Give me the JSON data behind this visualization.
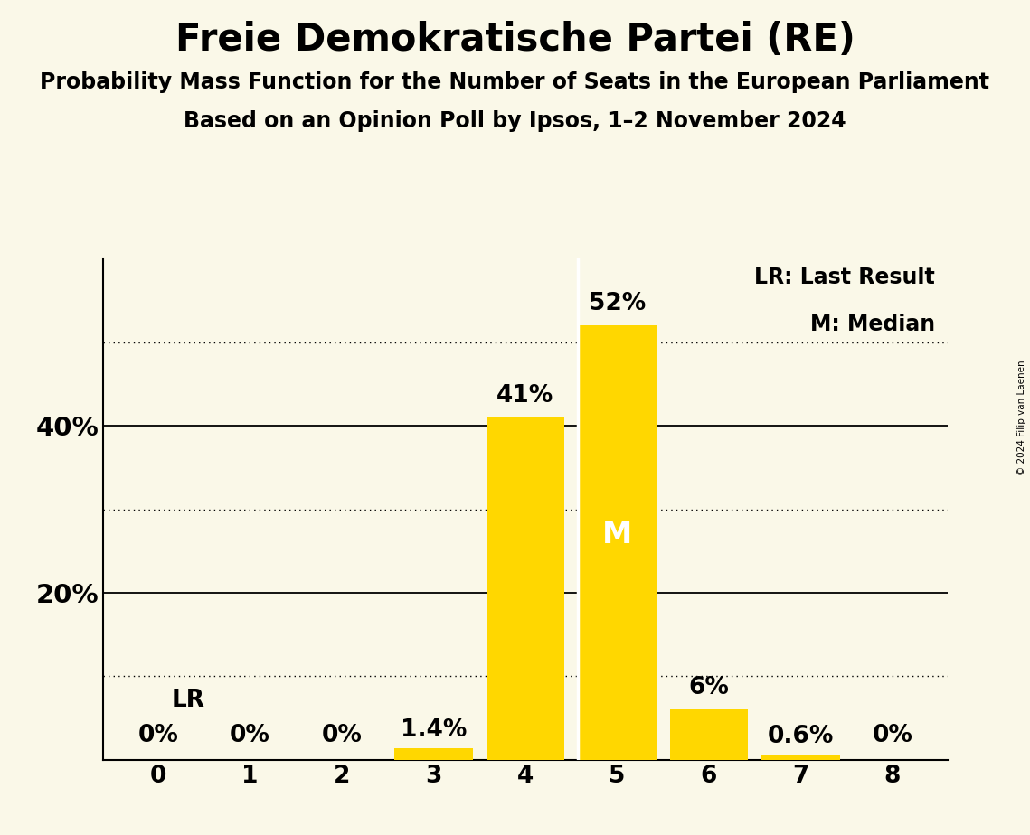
{
  "title": "Freie Demokratische Partei (RE)",
  "subtitle1": "Probability Mass Function for the Number of Seats in the European Parliament",
  "subtitle2": "Based on an Opinion Poll by Ipsos, 1–2 November 2024",
  "copyright": "© 2024 Filip van Laenen",
  "seats": [
    0,
    1,
    2,
    3,
    4,
    5,
    6,
    7,
    8
  ],
  "probabilities": [
    0.0,
    0.0,
    0.0,
    1.4,
    41.0,
    52.0,
    6.0,
    0.6,
    0.0
  ],
  "bar_labels": [
    "0%",
    "0%",
    "0%",
    "1.4%",
    "41%",
    "52%",
    "6%",
    "0.6%",
    "0%"
  ],
  "bar_color": "#FFD700",
  "background_color": "#FAF8E8",
  "last_result_seat": 0,
  "median_seat": 5,
  "ylim": [
    0,
    60
  ],
  "solid_lines": [
    20,
    40
  ],
  "dotted_lines": [
    10,
    30,
    50
  ],
  "legend_text": [
    "LR: Last Result",
    "M: Median"
  ],
  "lr_label": "LR",
  "median_label": "M",
  "title_fontsize": 30,
  "subtitle_fontsize": 17,
  "axis_label_fontsize": 21,
  "bar_label_fontsize": 19,
  "tick_label_fontsize": 19,
  "legend_fontsize": 17
}
